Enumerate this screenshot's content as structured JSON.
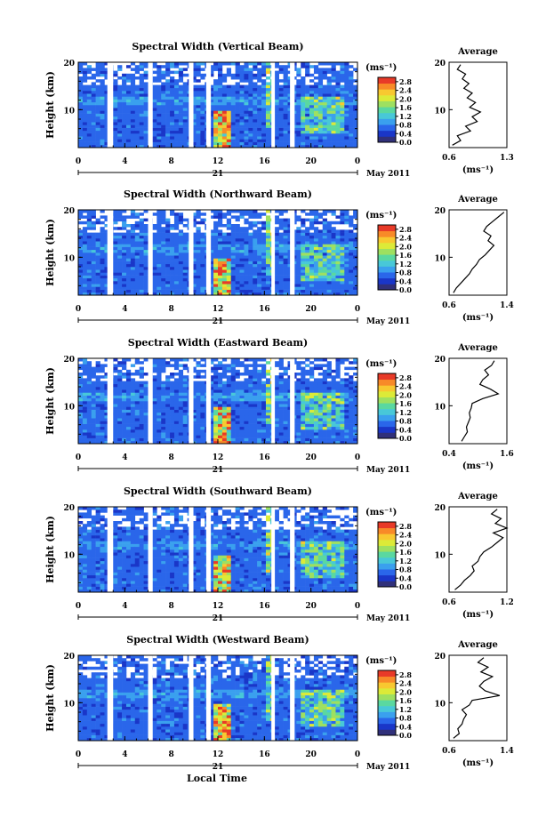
{
  "figure": {
    "local_time_label": "Local Time",
    "colors": {
      "colorbar": [
        "#30307a",
        "#1a36c8",
        "#2a66ea",
        "#3aa0ee",
        "#48c8d8",
        "#5ad8a0",
        "#9ee060",
        "#dcea38",
        "#f8c830",
        "#f88a28",
        "#e83a28"
      ],
      "gap": "#ffffff",
      "profile_line": "#000000"
    }
  },
  "chart_data": [
    {
      "type": "heatmap",
      "title": "Spectral Width (Vertical Beam)",
      "ylabel": "Height (km)",
      "y_ticks": [
        "20",
        "10"
      ],
      "ylim": [
        2,
        20
      ],
      "x_ticks": [
        "0",
        "4",
        "8",
        "12",
        "16",
        "20",
        "0"
      ],
      "xlim": [
        0,
        24
      ],
      "day_label": "21",
      "date_label": "May 2011",
      "unit_label": "(ms⁻¹)",
      "colorbar_ticks": [
        "2.8",
        "2.4",
        "2.0",
        "1.6",
        "1.2",
        "0.8",
        "0.4",
        "0.0"
      ],
      "colorbar_range": [
        0,
        3.0
      ],
      "data_gaps_hours": [
        [
          2.5,
          3.0
        ],
        [
          6.0,
          6.4
        ],
        [
          9.5,
          9.9
        ],
        [
          11.0,
          11.4
        ],
        [
          16.6,
          16.9
        ],
        [
          18.2,
          18.6
        ]
      ],
      "profile": {
        "title": "Average",
        "xlabel": "(ms⁻¹)",
        "x_ticks": [
          "0.6",
          "1.3"
        ],
        "xlim": [
          0.6,
          1.3
        ],
        "y_ticks": [
          "20",
          "10"
        ],
        "heights_km": [
          2.5,
          3.5,
          4.5,
          5.5,
          6.5,
          7.5,
          8.5,
          9.5,
          10.5,
          11.5,
          12.5,
          13.5,
          14.5,
          15.5,
          16.5,
          17.5,
          18.5,
          19.5
        ],
        "values": [
          0.64,
          0.74,
          0.7,
          0.86,
          0.8,
          0.94,
          0.88,
          0.98,
          0.85,
          0.92,
          0.82,
          0.88,
          0.78,
          0.84,
          0.76,
          0.8,
          0.7,
          0.74
        ]
      }
    },
    {
      "type": "heatmap",
      "title": "Spectral Width (Northward Beam)",
      "ylabel": "Height (km)",
      "y_ticks": [
        "20",
        "10"
      ],
      "ylim": [
        2,
        20
      ],
      "x_ticks": [
        "0",
        "4",
        "8",
        "12",
        "16",
        "20",
        "0"
      ],
      "xlim": [
        0,
        24
      ],
      "day_label": "21",
      "date_label": "May 2011",
      "unit_label": "(ms⁻¹)",
      "colorbar_ticks": [
        "2.8",
        "2.4",
        "2.0",
        "1.6",
        "1.2",
        "0.8",
        "0.4",
        "0.0"
      ],
      "colorbar_range": [
        0,
        3.0
      ],
      "data_gaps_hours": [
        [
          2.5,
          3.0
        ],
        [
          6.0,
          6.4
        ],
        [
          9.5,
          9.9
        ],
        [
          11.0,
          11.4
        ],
        [
          16.6,
          16.9
        ],
        [
          18.2,
          18.6
        ]
      ],
      "profile": {
        "title": "Average",
        "xlabel": "(ms⁻¹)",
        "x_ticks": [
          "0.6",
          "1.4"
        ],
        "xlim": [
          0.6,
          1.4
        ],
        "y_ticks": [
          "20",
          "10"
        ],
        "heights_km": [
          2.5,
          3.5,
          4.5,
          5.5,
          6.5,
          7.5,
          8.5,
          9.5,
          10.5,
          11.5,
          12.5,
          13.5,
          14.5,
          15.5,
          16.5,
          17.5,
          18.5,
          19.5
        ],
        "values": [
          0.66,
          0.7,
          0.76,
          0.82,
          0.88,
          0.92,
          0.98,
          1.02,
          1.1,
          1.16,
          1.22,
          1.14,
          1.18,
          1.08,
          1.12,
          1.2,
          1.28,
          1.36
        ]
      }
    },
    {
      "type": "heatmap",
      "title": "Spectral Width (Eastward Beam)",
      "ylabel": "Height (km)",
      "y_ticks": [
        "20",
        "10"
      ],
      "ylim": [
        2,
        20
      ],
      "x_ticks": [
        "0",
        "4",
        "8",
        "12",
        "16",
        "20",
        "0"
      ],
      "xlim": [
        0,
        24
      ],
      "day_label": "21",
      "date_label": "May 2011",
      "unit_label": "(ms⁻¹)",
      "colorbar_ticks": [
        "2.8",
        "2.4",
        "2.0",
        "1.6",
        "1.2",
        "0.8",
        "0.4",
        "0.0"
      ],
      "colorbar_range": [
        0,
        3.0
      ],
      "data_gaps_hours": [
        [
          2.5,
          3.0
        ],
        [
          6.0,
          6.4
        ],
        [
          9.5,
          9.9
        ],
        [
          11.0,
          11.4
        ],
        [
          16.6,
          16.9
        ],
        [
          18.2,
          18.6
        ]
      ],
      "profile": {
        "title": "Average",
        "xlabel": "(ms⁻¹)",
        "x_ticks": [
          "0.4",
          "1.6"
        ],
        "xlim": [
          0.4,
          1.6
        ],
        "y_ticks": [
          "20",
          "10"
        ],
        "heights_km": [
          2.5,
          3.5,
          4.5,
          5.5,
          6.5,
          7.5,
          8.5,
          9.5,
          10.5,
          11.5,
          12.5,
          13.5,
          14.5,
          15.5,
          16.5,
          17.5,
          18.5,
          19.5
        ],
        "values": [
          0.66,
          0.72,
          0.78,
          0.76,
          0.8,
          0.84,
          0.82,
          0.86,
          0.88,
          1.1,
          1.42,
          1.26,
          1.04,
          1.1,
          1.22,
          1.14,
          1.28,
          1.34
        ]
      }
    },
    {
      "type": "heatmap",
      "title": "Spectral Width (Southward Beam)",
      "ylabel": "Height (km)",
      "y_ticks": [
        "20",
        "10"
      ],
      "ylim": [
        2,
        20
      ],
      "x_ticks": [
        "0",
        "4",
        "8",
        "12",
        "16",
        "20",
        "0"
      ],
      "xlim": [
        0,
        24
      ],
      "day_label": "21",
      "date_label": "May 2011",
      "unit_label": "(ms⁻¹)",
      "colorbar_ticks": [
        "2.8",
        "2.4",
        "2.0",
        "1.6",
        "1.2",
        "0.8",
        "0.4",
        "0.0"
      ],
      "colorbar_range": [
        0,
        3.0
      ],
      "data_gaps_hours": [
        [
          2.5,
          3.0
        ],
        [
          6.0,
          6.4
        ],
        [
          9.5,
          9.9
        ],
        [
          11.0,
          11.4
        ],
        [
          16.6,
          16.9
        ],
        [
          18.2,
          18.6
        ]
      ],
      "profile": {
        "title": "Average",
        "xlabel": "(ms⁻¹)",
        "x_ticks": [
          "0.6",
          "1.2"
        ],
        "xlim": [
          0.6,
          1.2
        ],
        "y_ticks": [
          "20",
          "10"
        ],
        "heights_km": [
          2.5,
          3.5,
          4.5,
          5.5,
          6.5,
          7.5,
          8.5,
          9.5,
          10.5,
          11.5,
          12.5,
          13.5,
          14.5,
          15.5,
          16.5,
          17.5,
          18.5,
          19.5
        ],
        "values": [
          0.66,
          0.72,
          0.76,
          0.82,
          0.86,
          0.84,
          0.9,
          0.92,
          0.96,
          1.04,
          1.1,
          1.16,
          1.06,
          1.2,
          1.08,
          1.14,
          1.04,
          1.1
        ]
      }
    },
    {
      "type": "heatmap",
      "title": "Spectral Width (Westward Beam)",
      "ylabel": "Height (km)",
      "y_ticks": [
        "20",
        "10"
      ],
      "ylim": [
        2,
        20
      ],
      "x_ticks": [
        "0",
        "4",
        "8",
        "12",
        "16",
        "20",
        "0"
      ],
      "xlim": [
        0,
        24
      ],
      "day_label": "21",
      "date_label": "May 2011",
      "unit_label": "(ms⁻¹)",
      "colorbar_ticks": [
        "2.8",
        "2.4",
        "2.0",
        "1.6",
        "1.2",
        "0.8",
        "0.4",
        "0.0"
      ],
      "colorbar_range": [
        0,
        3.0
      ],
      "data_gaps_hours": [
        [
          2.5,
          3.0
        ],
        [
          6.0,
          6.4
        ],
        [
          9.5,
          9.9
        ],
        [
          11.0,
          11.4
        ],
        [
          16.6,
          16.9
        ],
        [
          18.2,
          18.6
        ]
      ],
      "profile": {
        "title": "Average",
        "xlabel": "(ms⁻¹)",
        "x_ticks": [
          "0.6",
          "1.4"
        ],
        "xlim": [
          0.6,
          1.4
        ],
        "y_ticks": [
          "20",
          "10"
        ],
        "heights_km": [
          2.5,
          3.5,
          4.5,
          5.5,
          6.5,
          7.5,
          8.5,
          9.5,
          10.5,
          11.5,
          12.5,
          13.5,
          14.5,
          15.5,
          16.5,
          17.5,
          18.5,
          19.5
        ],
        "values": [
          0.66,
          0.74,
          0.72,
          0.78,
          0.8,
          0.84,
          0.78,
          0.88,
          0.92,
          1.3,
          1.1,
          1.02,
          1.08,
          1.2,
          1.04,
          1.14,
          1.0,
          1.08
        ]
      }
    }
  ]
}
